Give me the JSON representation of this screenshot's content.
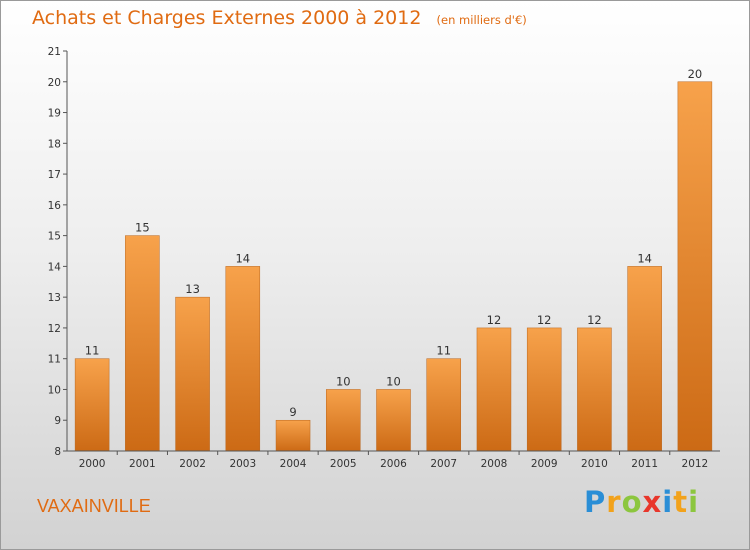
{
  "header": {
    "title": "Achats et Charges Externes 2000 à 2012",
    "subtitle": "(en milliers d'€)"
  },
  "footer": {
    "commune": "VAXAINVILLE",
    "logo": {
      "letters": [
        "P",
        "r",
        "o",
        "x",
        "i",
        "t",
        "i"
      ],
      "colors": [
        "#2a8ed6",
        "#f2a21b",
        "#8cc63e",
        "#e8362b",
        "#2a8ed6",
        "#f2a21b",
        "#8cc63e"
      ]
    }
  },
  "colors": {
    "title": "#e06b12",
    "bar_top": "#f7a24b",
    "bar_bottom": "#cc6a15",
    "axis": "#555555"
  },
  "chart_data": {
    "type": "bar",
    "title": "Achats et Charges Externes 2000 à 2012",
    "subtitle": "(en milliers d'€)",
    "categories": [
      "2000",
      "2001",
      "2002",
      "2003",
      "2004",
      "2005",
      "2006",
      "2007",
      "2008",
      "2009",
      "2010",
      "2011",
      "2012"
    ],
    "values": [
      11,
      15,
      13,
      14,
      9,
      10,
      10,
      11,
      12,
      12,
      12,
      14,
      20
    ],
    "ylim": [
      8,
      21
    ],
    "yticks": [
      8,
      9,
      10,
      11,
      12,
      13,
      14,
      15,
      16,
      17,
      18,
      19,
      20,
      21
    ],
    "grid": false,
    "legend": "none",
    "data_labels": true
  }
}
